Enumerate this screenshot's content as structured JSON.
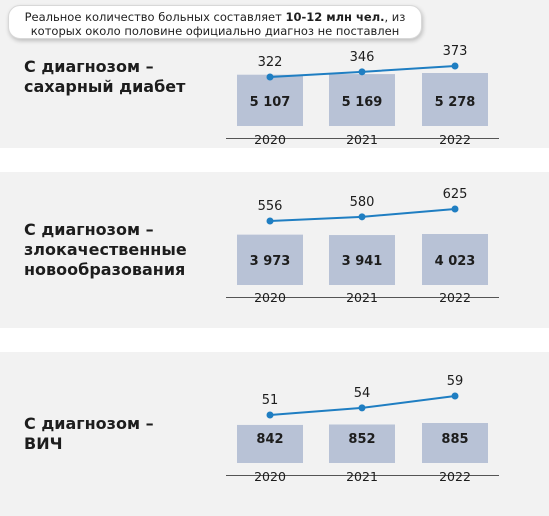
{
  "note": {
    "prefix": "Реальное количество больных составляет ",
    "highlight": "10-12 млн чел.",
    "suffix": ", из которых около половине официально диагноз не поставлен"
  },
  "panels": [
    {
      "title_lines": [
        "С диагнозом –",
        "сахарный диабет"
      ]
    },
    {
      "title_lines": [
        "С диагнозом –",
        "злокачественные",
        "новообразования"
      ]
    },
    {
      "title_lines": [
        "С диагнозом –",
        "ВИЧ"
      ]
    }
  ],
  "colors": {
    "bar": "#b8c2d6",
    "line": "#1f7ec2",
    "band": "#f2f2f2",
    "text": "#1d1d1d"
  },
  "chart_data": [
    {
      "type": "bar",
      "categories": [
        "2020",
        "2021",
        "2022"
      ],
      "series": [
        {
          "type": "bar",
          "values": [
            5107,
            5169,
            5278
          ],
          "value_labels": [
            "5 107",
            "5 169",
            "5 278"
          ]
        },
        {
          "type": "line",
          "values": [
            322,
            346,
            373
          ],
          "value_labels": [
            "322",
            "346",
            "373"
          ]
        }
      ]
    },
    {
      "type": "bar",
      "categories": [
        "2020",
        "2021",
        "2022"
      ],
      "series": [
        {
          "type": "bar",
          "values": [
            3973,
            3941,
            4023
          ],
          "value_labels": [
            "3 973",
            "3 941",
            "4 023"
          ]
        },
        {
          "type": "line",
          "values": [
            556,
            580,
            625
          ],
          "value_labels": [
            "556",
            "580",
            "625"
          ]
        }
      ]
    },
    {
      "type": "bar",
      "categories": [
        "2020",
        "2021",
        "2022"
      ],
      "series": [
        {
          "type": "bar",
          "values": [
            842,
            852,
            885
          ],
          "value_labels": [
            "842",
            "852",
            "885"
          ]
        },
        {
          "type": "line",
          "values": [
            51,
            54,
            59
          ],
          "value_labels": [
            "51",
            "54",
            "59"
          ]
        }
      ]
    }
  ]
}
